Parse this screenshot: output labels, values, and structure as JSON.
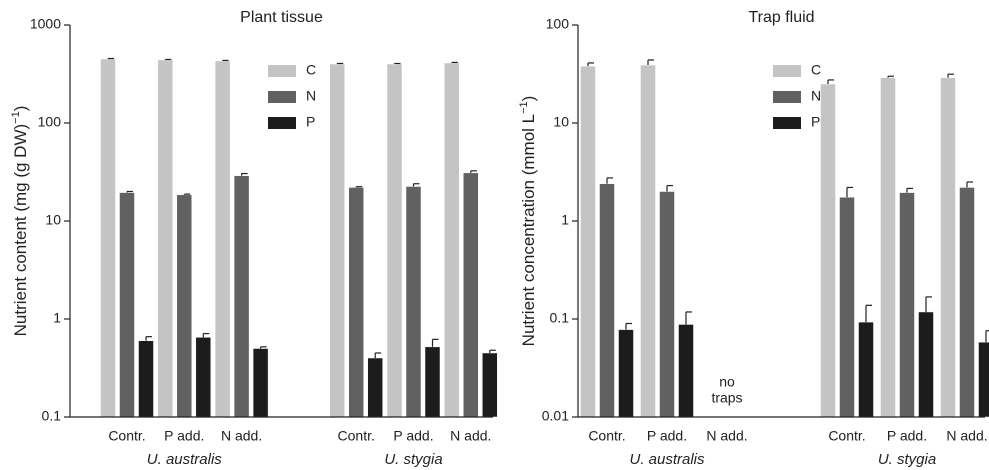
{
  "chart_data": [
    {
      "type": "bar",
      "title": "Plant tissue",
      "ylabel": [
        "Nutrient content (mg (g DW)",
        "−1",
        ")"
      ],
      "categories": [
        "Contr.",
        "P add.",
        "N add.",
        "Contr.",
        "P add.",
        "N add."
      ],
      "groups": [
        "U. australis",
        "U. stygia"
      ],
      "log": true,
      "ylim": [
        0.1,
        1000
      ],
      "yticks": [
        0.1,
        1,
        10,
        100,
        1000
      ],
      "legend": "upper right",
      "series": [
        {
          "name": "C",
          "color": "#c4c4c4",
          "values": [
            450,
            440,
            430,
            400,
            400,
            410
          ],
          "errors": [
            5,
            5,
            5,
            5,
            5,
            5
          ]
        },
        {
          "name": "N",
          "color": "#616161",
          "values": [
            19.5,
            18.5,
            29,
            22,
            22.5,
            31
          ],
          "errors": [
            0.5,
            0.3,
            1.5,
            0.4,
            1.5,
            1.5
          ]
        },
        {
          "name": "P",
          "color": "#1c1c1c",
          "values": [
            0.6,
            0.65,
            0.5,
            0.4,
            0.52,
            0.45
          ],
          "errors": [
            0.06,
            0.06,
            0.02,
            0.05,
            0.1,
            0.03
          ]
        }
      ]
    },
    {
      "type": "bar",
      "title": "Trap fluid",
      "ylabel": [
        "Nutrient concentration (mmol L",
        "−1",
        ")"
      ],
      "categories": [
        "Contr.",
        "P add.",
        "N add.",
        "Contr.",
        "P add.",
        "N add."
      ],
      "groups": [
        "U. australis",
        "U. stygia"
      ],
      "annotation": [
        "no",
        "traps"
      ],
      "log": true,
      "ylim": [
        0.01,
        100
      ],
      "yticks": [
        0.01,
        0.1,
        1,
        10,
        100
      ],
      "legend": "upper right",
      "series": [
        {
          "name": "C",
          "color": "#c4c4c4",
          "values": [
            38,
            39,
            null,
            25,
            29,
            29
          ],
          "errors": [
            3,
            5,
            null,
            2.5,
            1,
            2.5
          ]
        },
        {
          "name": "N",
          "color": "#616161",
          "values": [
            2.4,
            2.0,
            null,
            1.75,
            1.95,
            2.2
          ],
          "errors": [
            0.35,
            0.3,
            null,
            0.45,
            0.2,
            0.3
          ]
        },
        {
          "name": "P",
          "color": "#1c1c1c",
          "values": [
            0.078,
            0.088,
            null,
            0.093,
            0.118,
            0.058
          ],
          "errors": [
            0.012,
            0.03,
            null,
            0.045,
            0.05,
            0.018
          ]
        }
      ]
    }
  ]
}
